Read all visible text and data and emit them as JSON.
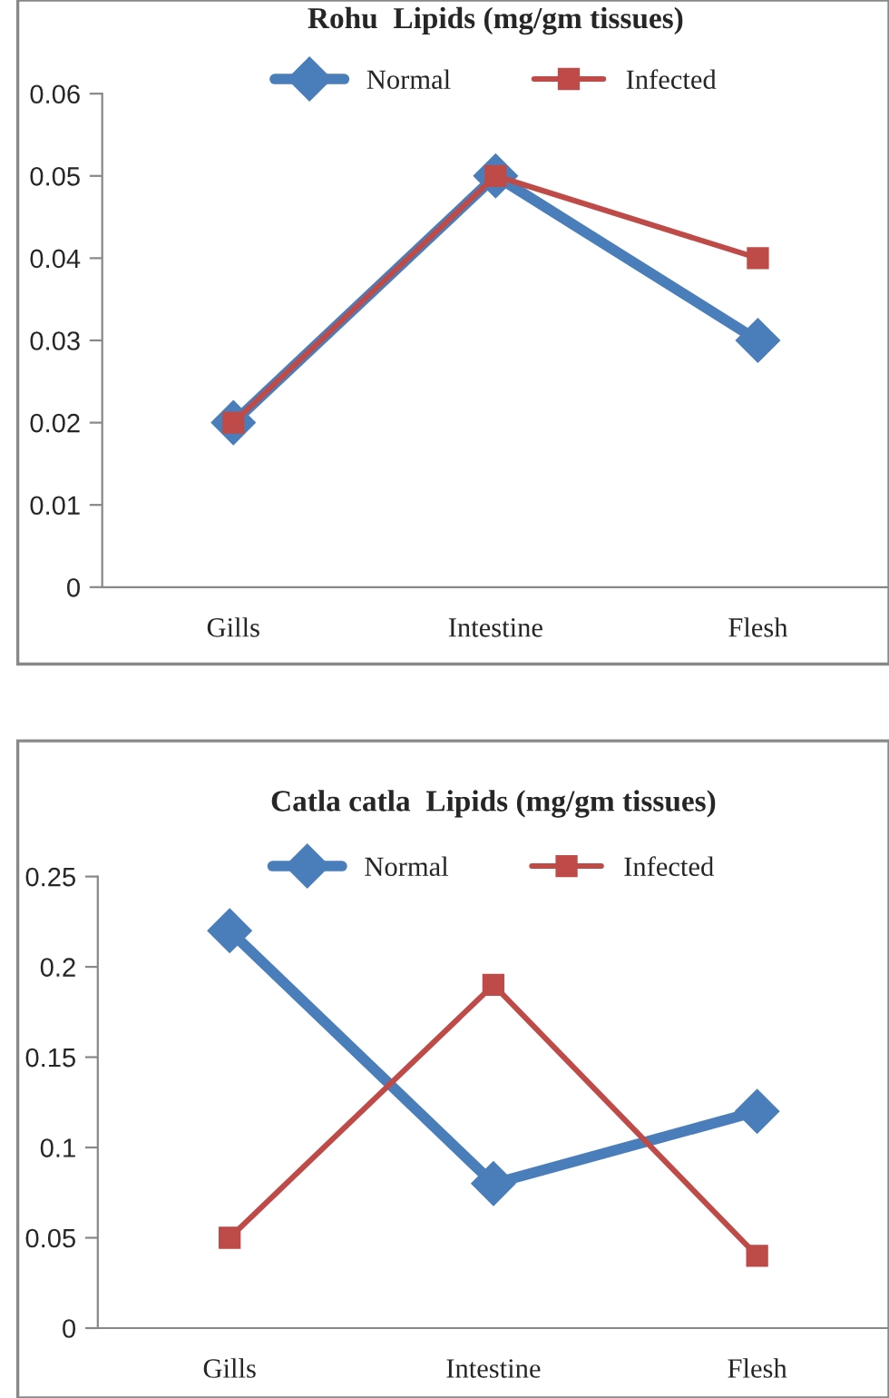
{
  "chart_data": [
    {
      "type": "line",
      "title": "Rohu  Lipids (mg/gm tissues)",
      "categories": [
        "Gills",
        "Intestine",
        "Flesh"
      ],
      "series": [
        {
          "name": "Normal",
          "color": "#4a7ebb",
          "values": [
            0.02,
            0.05,
            0.03
          ],
          "marker": "diamond"
        },
        {
          "name": "Infected",
          "color": "#be4b48",
          "values": [
            0.02,
            0.05,
            0.04
          ],
          "marker": "square"
        }
      ],
      "ylim": [
        0,
        0.06
      ],
      "yticks": [
        {
          "value": 0,
          "label": "0"
        },
        0.01,
        0.02,
        0.03,
        0.04,
        0.05,
        0.06
      ],
      "legend": "top",
      "grid": false
    },
    {
      "type": "line",
      "title": "Catla catla  Lipids (mg/gm tissues)",
      "categories": [
        "Gills",
        "Intestine",
        "Flesh"
      ],
      "series": [
        {
          "name": "Normal",
          "color": "#4a7ebb",
          "values": [
            0.22,
            0.08,
            0.12
          ],
          "marker": "diamond"
        },
        {
          "name": "Infected",
          "color": "#be4b48",
          "values": [
            0.05,
            0.19,
            0.04
          ],
          "marker": "square"
        }
      ],
      "ylim": [
        0,
        0.25
      ],
      "yticks": [
        {
          "value": 0,
          "label": "0"
        },
        0.05,
        0.1,
        0.15,
        0.2,
        0.25
      ],
      "legend": "top",
      "grid": false
    }
  ]
}
